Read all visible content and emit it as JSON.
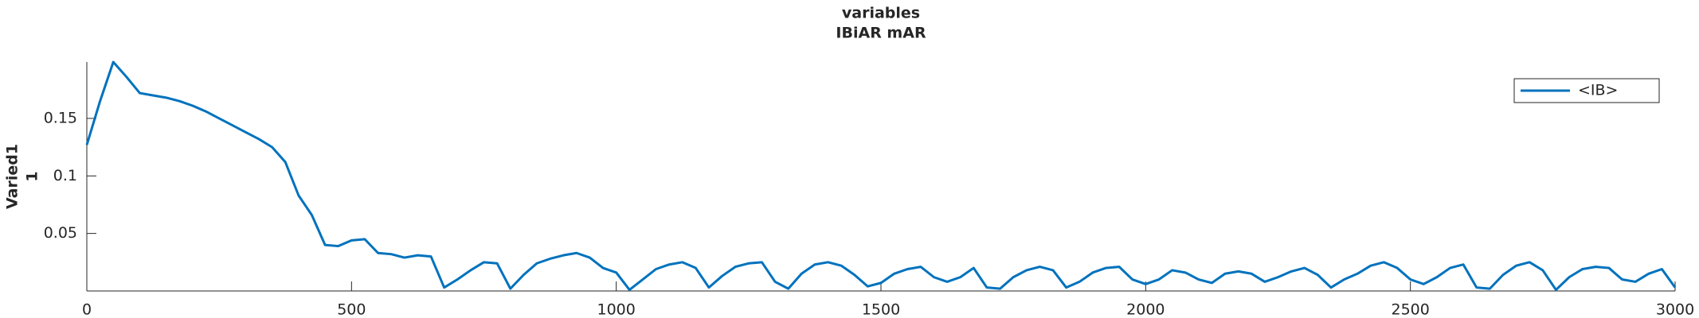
{
  "chart_data": {
    "type": "line",
    "title": "variables",
    "subtitle": "IBiAR mAR",
    "ylabel": [
      "Varied1",
      "1"
    ],
    "x": [
      0,
      25,
      50,
      75,
      100,
      125,
      150,
      175,
      200,
      225,
      250,
      275,
      300,
      325,
      350,
      375,
      400,
      425,
      450,
      475,
      500,
      525,
      550,
      575,
      600,
      625,
      650,
      675,
      700,
      725,
      750,
      775,
      800,
      825,
      850,
      875,
      900,
      925,
      950,
      975,
      1000,
      1025,
      1050,
      1075,
      1100,
      1125,
      1150,
      1175,
      1200,
      1225,
      1250,
      1275,
      1300,
      1325,
      1350,
      1375,
      1400,
      1425,
      1450,
      1475,
      1500,
      1525,
      1550,
      1575,
      1600,
      1625,
      1650,
      1675,
      1700,
      1725,
      1750,
      1775,
      1800,
      1825,
      1850,
      1875,
      1900,
      1925,
      1950,
      1975,
      2000,
      2025,
      2050,
      2075,
      2100,
      2125,
      2150,
      2175,
      2200,
      2225,
      2250,
      2275,
      2300,
      2325,
      2350,
      2375,
      2400,
      2425,
      2450,
      2475,
      2500,
      2525,
      2550,
      2575,
      2600,
      2625,
      2650,
      2675,
      2700,
      2725,
      2750,
      2775,
      2800,
      2825,
      2850,
      2875,
      2900,
      2925,
      2950,
      2975,
      3000
    ],
    "series": [
      {
        "name": "<IB>",
        "color": "#0072bd",
        "values": [
          0.127,
          0.165,
          0.199,
          0.186,
          0.172,
          0.17,
          0.168,
          0.165,
          0.161,
          0.156,
          0.15,
          0.144,
          0.138,
          0.132,
          0.125,
          0.112,
          0.083,
          0.066,
          0.04,
          0.039,
          0.044,
          0.045,
          0.033,
          0.032,
          0.029,
          0.031,
          0.03,
          0.003,
          0.01,
          0.018,
          0.025,
          0.024,
          0.002,
          0.014,
          0.024,
          0.028,
          0.031,
          0.033,
          0.029,
          0.02,
          0.016,
          0.001,
          0.01,
          0.019,
          0.023,
          0.025,
          0.02,
          0.003,
          0.013,
          0.021,
          0.024,
          0.025,
          0.008,
          0.002,
          0.015,
          0.023,
          0.025,
          0.022,
          0.014,
          0.004,
          0.007,
          0.015,
          0.019,
          0.021,
          0.012,
          0.008,
          0.012,
          0.02,
          0.003,
          0.002,
          0.012,
          0.018,
          0.021,
          0.018,
          0.003,
          0.008,
          0.016,
          0.02,
          0.021,
          0.01,
          0.006,
          0.01,
          0.018,
          0.016,
          0.01,
          0.007,
          0.015,
          0.017,
          0.015,
          0.008,
          0.012,
          0.017,
          0.02,
          0.014,
          0.003,
          0.01,
          0.015,
          0.022,
          0.025,
          0.02,
          0.01,
          0.006,
          0.012,
          0.02,
          0.023,
          0.003,
          0.002,
          0.014,
          0.022,
          0.025,
          0.018,
          0.001,
          0.012,
          0.019,
          0.021,
          0.02,
          0.01,
          0.008,
          0.015,
          0.019,
          0.003
        ]
      }
    ],
    "xlim": [
      0,
      3000
    ],
    "xticks": [
      0,
      500,
      1000,
      1500,
      2000,
      2500,
      3000
    ],
    "ylim": [
      0,
      0.199
    ],
    "yticks": [
      0.05,
      0.1,
      0.15
    ],
    "grid": false,
    "legend": "northeast"
  }
}
